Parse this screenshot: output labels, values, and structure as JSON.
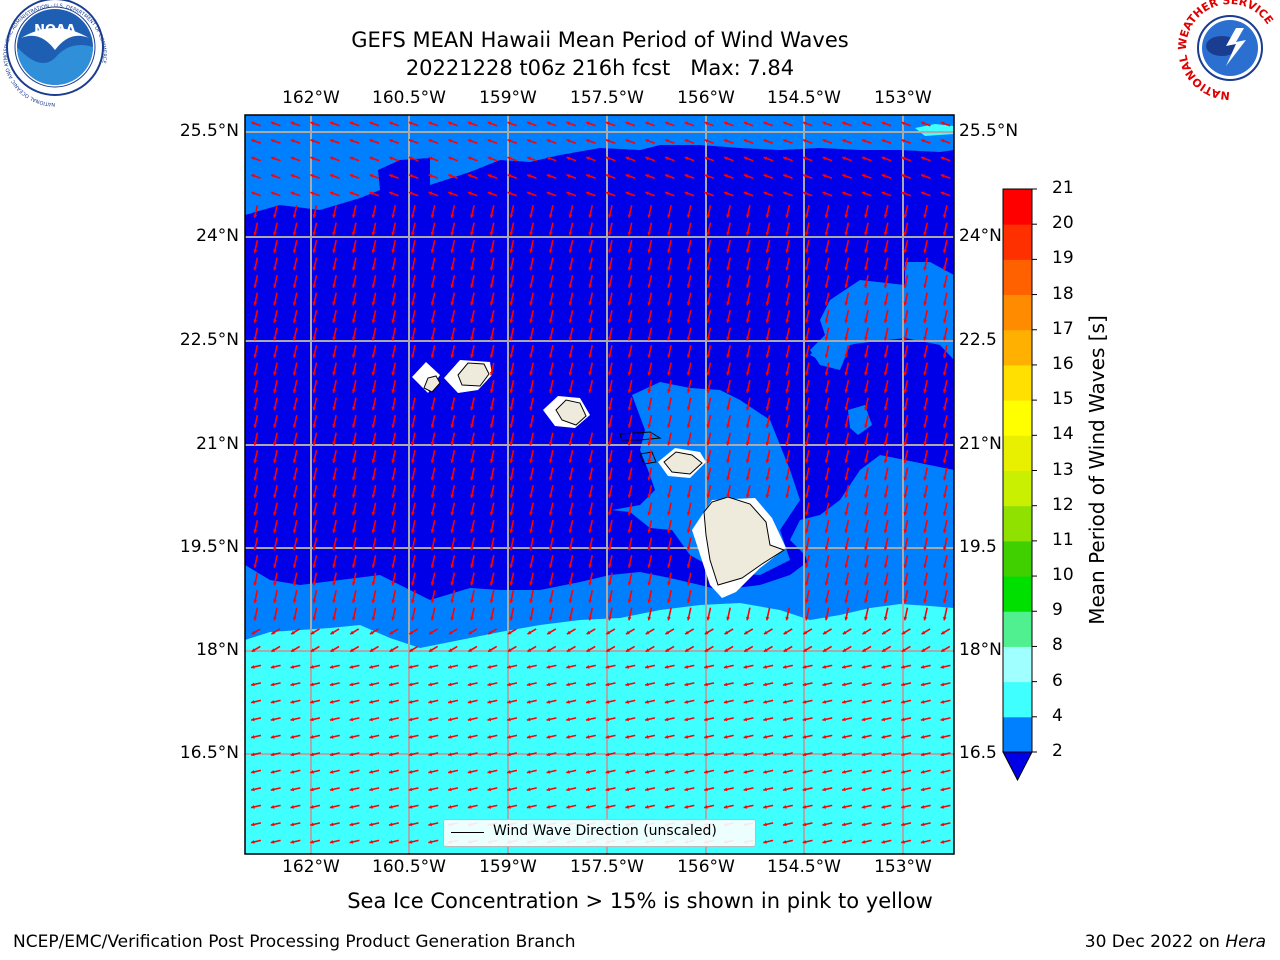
{
  "title": {
    "line1": "GEFS MEAN Hawaii Mean Period of Wind Waves",
    "line2": "20221228 t06z 216h fcst   Max: 7.84"
  },
  "logos": {
    "noaa_text": "NOAA",
    "noaa_ring": "NATIONAL OCEANIC AND ATMOSPHERIC ADMINISTRATION · U.S. DEPARTMENT OF COMMERCE",
    "nws_ring": "NATIONAL WEATHER SERVICE"
  },
  "map": {
    "lon_labels": [
      "162°W",
      "160.5°W",
      "159°W",
      "157.5°W",
      "156°W",
      "154.5°W",
      "153°W"
    ],
    "lat_labels_left": [
      "25.5°N",
      "24°N",
      "22.5°N",
      "21°N",
      "19.5°N",
      "18°N",
      "16.5°N"
    ],
    "lat_labels_right": [
      "25.5°N",
      "24°N",
      "22.5",
      "21°N",
      "19.5",
      "18°N",
      "16.5"
    ],
    "legend": "Wind Wave Direction (unscaled)",
    "colors": {
      "deep": "#0000e8",
      "medium": "#0080ff",
      "light": "#40ffff",
      "land": "#efebdc",
      "arrow": "#ff0000",
      "grid": "#aaaaaa"
    }
  },
  "colorbar": {
    "label": "Mean Period of Wind Waves [s]",
    "ticks": [
      "2",
      "4",
      "6",
      "8",
      "9",
      "10",
      "11",
      "12",
      "13",
      "14",
      "15",
      "16",
      "17",
      "18",
      "19",
      "20",
      "21"
    ],
    "colors": [
      "#0080ff",
      "#00e8ff",
      "#40ffff",
      "#a0ffff",
      "#50f090",
      "#00e000",
      "#40d000",
      "#90e000",
      "#c8f000",
      "#e8f000",
      "#ffff00",
      "#ffe000",
      "#ffb000",
      "#ff8c00",
      "#ff6000",
      "#ff3000",
      "#ff0000"
    ],
    "extend_color": "#0000e8"
  },
  "footer": {
    "note": "Sea Ice Concentration > 15% is shown in pink to yellow",
    "left": "NCEP/EMC/Verification Post Processing Product Generation Branch",
    "right_prefix": "30 Dec 2022 on",
    "right_host": "Hera"
  }
}
